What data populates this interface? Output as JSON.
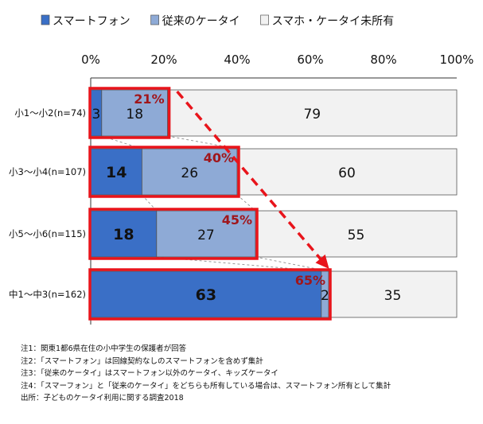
{
  "chart_data": {
    "type": "bar",
    "orientation": "horizontal",
    "stacked": true,
    "percent_stacked": true,
    "title": "",
    "categories": [
      "小1～小2(n=74)",
      "小3～小4(n=107)",
      "小5～小6(n=115)",
      "中1～中3(n=162)"
    ],
    "series": [
      {
        "name": "スマートフォン",
        "values": [
          3,
          14,
          18,
          63
        ],
        "color": "#3a6fc6"
      },
      {
        "name": "従来のケータイ",
        "values": [
          18,
          26,
          27,
          2
        ],
        "color": "#8eaad6"
      },
      {
        "name": "スマホ・ケータイ未所有",
        "values": [
          79,
          60,
          55,
          35
        ],
        "color": "#f2f2f2"
      }
    ],
    "highlight_labels": [
      "21%",
      "40%",
      "45%",
      "65%"
    ],
    "xlim": [
      0,
      100
    ],
    "x_ticks": [
      "0%",
      "20%",
      "40%",
      "60%",
      "80%",
      "100%"
    ],
    "legend_position": "top",
    "highlight_color": "#e8141b",
    "highlight_text_color": "#a0161b"
  },
  "notes": [
    "注1：関東1都6県在住の小中学生の保護者が回答",
    "注2：「スマートフォン」は回線契約なしのスマートフォンを含めず集計",
    "注3：「従来のケータイ」はスマートフォン以外のケータイ、キッズケータイ",
    "注4：「スマーフォン」と「従来のケータイ」をどちらも所有している場合は、スマートフォン所有として集計",
    "出所：子どものケータイ利用に関する調査2018"
  ]
}
